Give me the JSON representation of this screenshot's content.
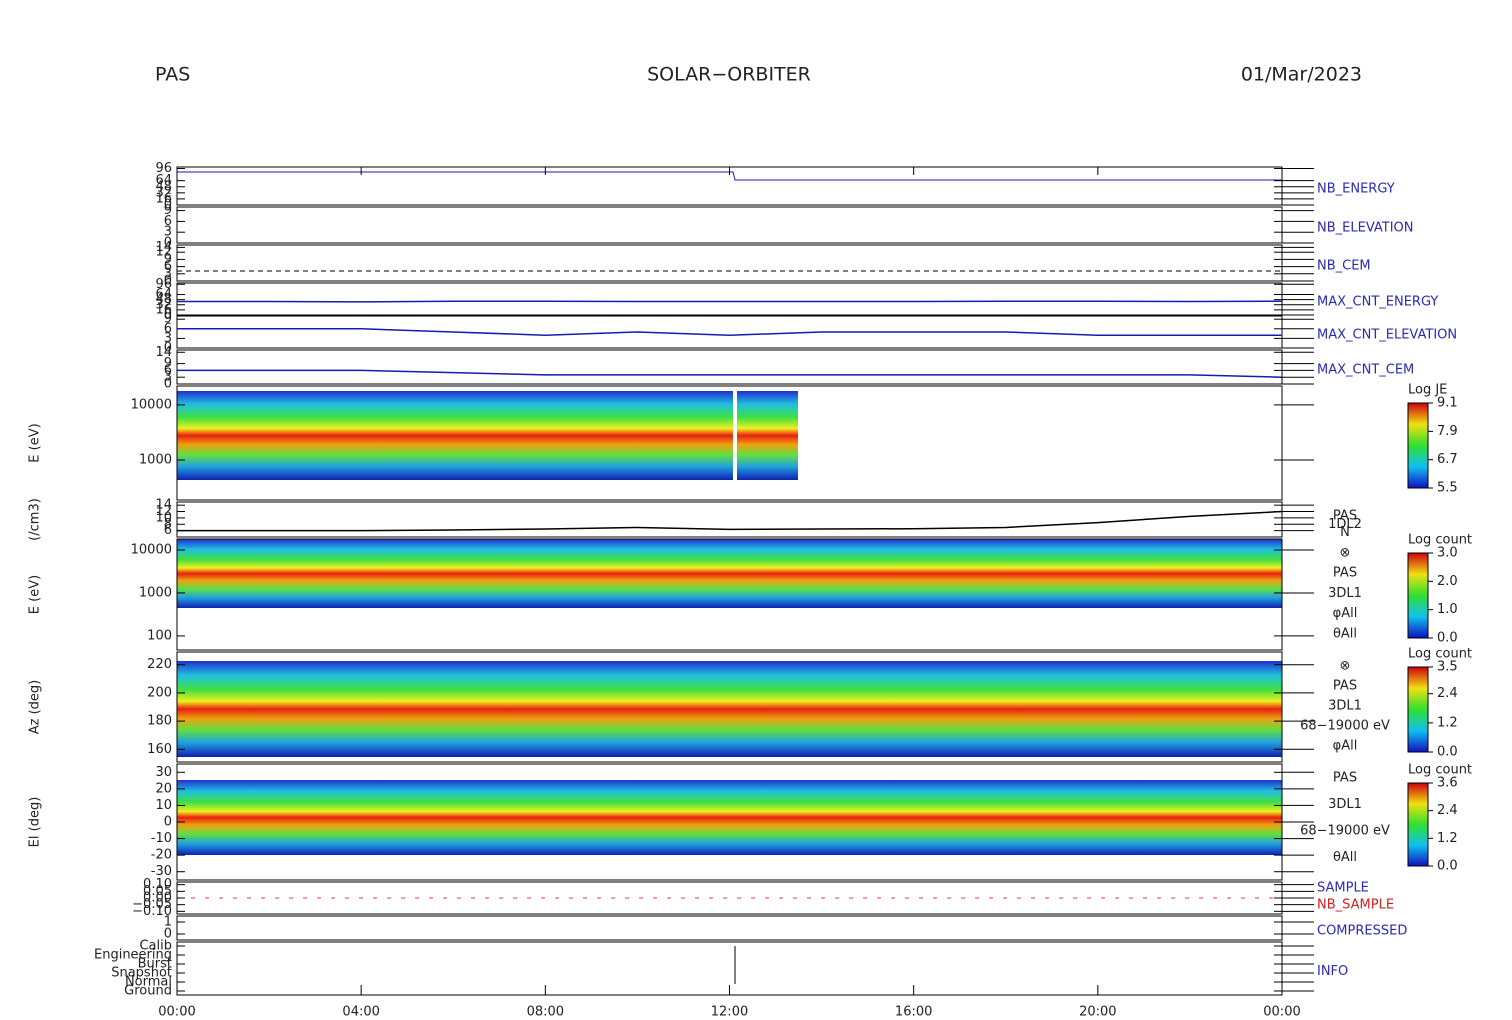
{
  "header": {
    "left": "PAS",
    "center": "SOLAR−ORBITER",
    "right": "01/Mar/2023"
  },
  "time_ticks": [
    "00:00",
    "04:00",
    "08:00",
    "12:00",
    "16:00",
    "20:00",
    "00:00"
  ],
  "panels": [
    {
      "label": "NB_ENERGY",
      "ylim": [
        0,
        100
      ],
      "yticks": [
        96,
        64,
        48,
        32,
        16,
        0
      ]
    },
    {
      "label": "NB_ELEVATION",
      "ylim": [
        0,
        10
      ],
      "yticks": [
        9,
        6,
        3,
        0
      ]
    },
    {
      "label": "NB_CEM",
      "ylim": [
        0,
        15
      ],
      "yticks": [
        14,
        12,
        9,
        6,
        3,
        0
      ]
    },
    {
      "label": "MAX_CNT_ENERGY",
      "ylim": [
        0,
        100
      ],
      "yticks": [
        96,
        64,
        48,
        32,
        16,
        0
      ],
      "values": [
        42,
        42,
        41,
        43,
        43,
        42,
        42,
        42,
        42,
        43,
        43,
        42,
        43
      ],
      "color": "#1a1ab0"
    },
    {
      "label": "MAX_CNT_ELEVATION",
      "ylim": [
        0,
        10
      ],
      "yticks": [
        9,
        6,
        3,
        0
      ],
      "values": [
        6,
        6,
        6,
        5,
        4,
        5,
        4,
        5,
        5,
        5,
        4,
        4,
        4
      ],
      "color": "#1a1ab0"
    },
    {
      "label": "MAX_CNT_CEM",
      "ylim": [
        0,
        15
      ],
      "yticks": [
        14,
        9,
        6,
        3,
        0
      ],
      "values": [
        6,
        6,
        6,
        5,
        4,
        4,
        4,
        4,
        4,
        4,
        4,
        4,
        3
      ],
      "color": "#1a1ab0"
    },
    {
      "ylabel": "E (eV)",
      "log": true,
      "ylim": [
        188,
        22000
      ],
      "yticks": [
        10000,
        1000
      ],
      "colorbar": {
        "title": "Log JE",
        "ticks": [
          9.1,
          7.9,
          6.7,
          5.5
        ]
      }
    },
    {
      "ylabel": "(/cm3)",
      "ylim": [
        4,
        15
      ],
      "yticks": [
        14,
        12,
        10,
        8,
        6
      ],
      "values": [
        6,
        6,
        6,
        6.2,
        6.5,
        7,
        6.4,
        6.5,
        6.6,
        7,
        8.5,
        10.5,
        12
      ],
      "color": "#000000",
      "side": [
        "PAS",
        "1DL2",
        "N"
      ]
    },
    {
      "ylabel": "E (eV)",
      "log": true,
      "ylim": [
        47,
        18000
      ],
      "yticks": [
        10000,
        1000,
        100
      ],
      "colorbar": {
        "title": "Log count",
        "ticks": [
          {
            "value": 3,
            "label": "3.0"
          },
          {
            "value": 2,
            "label": "2.0"
          },
          {
            "value": 1,
            "label": "1.0"
          },
          {
            "value": 0,
            "label": "0.0"
          }
        ]
      },
      "side": [
        "⊗",
        "PAS",
        "3DL1",
        "φAll",
        "θAll"
      ]
    },
    {
      "ylabel": "Az (deg)",
      "ylim": [
        151,
        229
      ],
      "yticks": [
        220,
        200,
        180,
        160
      ],
      "colorbar": {
        "title": "Log count",
        "ticks": [
          3.5,
          2.4,
          1.2,
          {
            "value": 0,
            "label": "0.0"
          }
        ]
      },
      "side": [
        "⊗",
        "PAS",
        "3DL1",
        "68−19000 eV",
        "φAll"
      ]
    },
    {
      "ylabel": "El (deg)",
      "ylim": [
        -35,
        35
      ],
      "yticks": [
        30,
        20,
        10,
        0,
        -10,
        -20,
        -30
      ],
      "colorbar": {
        "title": "Log count",
        "ticks": [
          3.6,
          2.4,
          1.2,
          {
            "value": 0,
            "label": "0.0"
          }
        ]
      },
      "side": [
        "PAS",
        "3DL1",
        "68−19000 eV",
        "θAll"
      ]
    },
    {
      "labels": [
        "SAMPLE",
        "NB_SAMPLE"
      ],
      "ylim": [
        -0.12,
        0.12
      ],
      "yticks": [
        {
          "value": 0.1,
          "label": "0.10"
        },
        {
          "value": 0.05,
          "label": "0.05"
        },
        {
          "value": 0,
          "label": "0.00"
        },
        {
          "value": -0.05,
          "label": "−0.05"
        },
        {
          "value": -0.1,
          "label": "−0.10"
        }
      ]
    },
    {
      "label": "COMPRESSED",
      "ylim": [
        -0.5,
        1.5
      ],
      "yticks": [
        1,
        0
      ]
    },
    {
      "label": "INFO",
      "yticks": [
        "Calib",
        "Engineering",
        "Burst",
        "Snapshot",
        "Normal",
        "Ground"
      ]
    }
  ]
}
